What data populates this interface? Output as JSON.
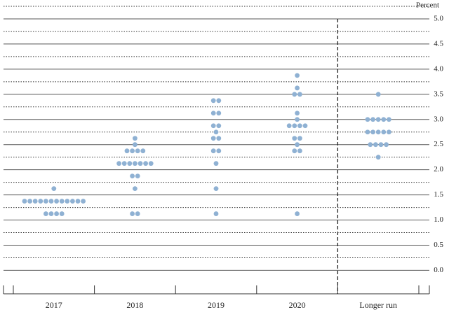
{
  "chart_data": {
    "type": "dotplot",
    "y_axis_label": "Percent",
    "categories": [
      "2017",
      "2018",
      "2019",
      "2020",
      "Longer run"
    ],
    "values": [
      [
        1.125,
        1.125,
        1.125,
        1.125,
        1.375,
        1.375,
        1.375,
        1.375,
        1.375,
        1.375,
        1.375,
        1.375,
        1.375,
        1.375,
        1.375,
        1.375,
        1.625
      ],
      [
        1.125,
        1.125,
        1.625,
        1.875,
        1.875,
        2.125,
        2.125,
        2.125,
        2.125,
        2.125,
        2.125,
        2.125,
        2.375,
        2.375,
        2.375,
        2.375,
        2.5,
        2.625
      ],
      [
        1.125,
        1.625,
        2.125,
        2.375,
        2.375,
        2.625,
        2.625,
        2.75,
        2.875,
        2.875,
        3.125,
        3.125,
        3.375,
        3.375
      ],
      [
        1.125,
        2.375,
        2.375,
        2.5,
        2.625,
        2.625,
        2.875,
        2.875,
        2.875,
        2.875,
        3.0,
        3.125,
        3.5,
        3.5,
        3.625,
        3.875
      ],
      [
        2.25,
        2.5,
        2.5,
        2.5,
        2.5,
        2.75,
        2.75,
        2.75,
        2.75,
        2.75,
        3.0,
        3.0,
        3.0,
        3.0,
        3.0,
        3.5
      ]
    ],
    "color": "#8fb1d3",
    "ylim": [
      -0.3,
      5.25
    ],
    "yticks": [
      {
        "value": 0,
        "label": "0.0"
      },
      {
        "value": 0.5,
        "label": "0.5"
      },
      {
        "value": 1,
        "label": "1.0"
      },
      {
        "value": 1.5,
        "label": "1.5"
      },
      {
        "value": 2,
        "label": "2.0"
      },
      {
        "value": 2.5,
        "label": "2.5"
      },
      {
        "value": 3,
        "label": "3.0"
      },
      {
        "value": 3.5,
        "label": "3.5"
      },
      {
        "value": 4,
        "label": "4.0"
      },
      {
        "value": 4.5,
        "label": "4.5"
      },
      {
        "value": 5,
        "label": "5.0"
      }
    ],
    "minor_yticks": [
      0.25,
      0.75,
      1.25,
      1.75,
      2.25,
      2.75,
      3.25,
      3.75,
      4.25,
      4.75,
      5.25
    ],
    "grid": true
  }
}
